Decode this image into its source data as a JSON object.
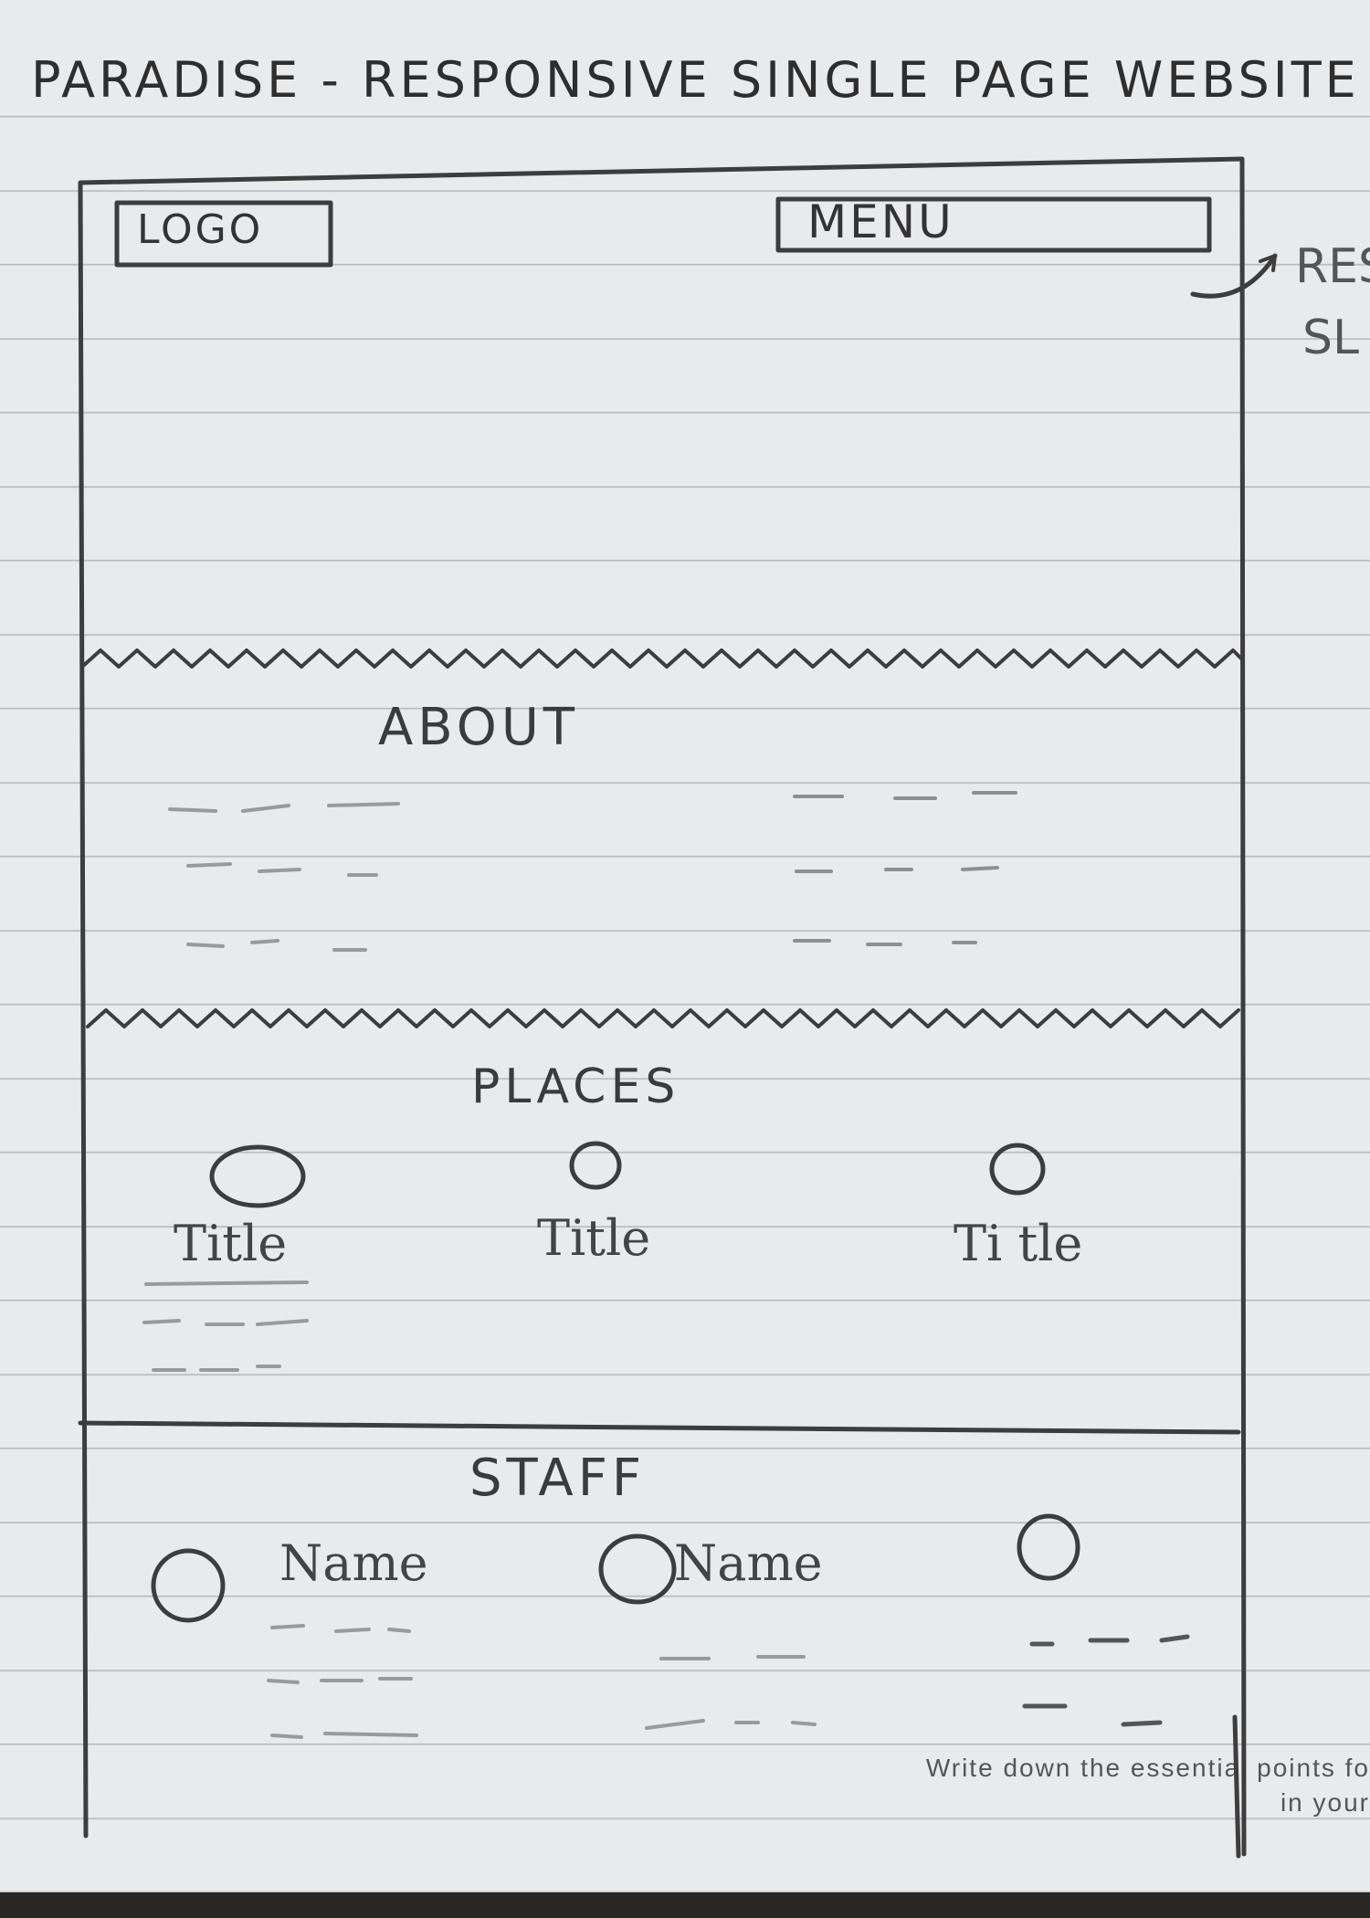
{
  "sheet": {
    "title": "PARADISE - RESPONSIVE SINGLE PAGE WEBSITE",
    "margin_note_line1": "RES",
    "margin_note_line2": "SL",
    "footer_note_line1": "Write down the essential points fo",
    "footer_note_line2": "in your"
  },
  "header": {
    "logo_label": "LOGO",
    "menu_label": "MENU"
  },
  "about": {
    "heading": "ABOUT"
  },
  "places": {
    "heading": "PLACES",
    "items": [
      {
        "title": "Title"
      },
      {
        "title": "Title"
      },
      {
        "title": "Ti tle"
      }
    ]
  },
  "staff": {
    "heading": "STAFF",
    "members": [
      {
        "name": "Name"
      },
      {
        "name": "Name"
      },
      {
        "name": ""
      }
    ]
  },
  "colors": {
    "paper": "#e9eaec",
    "rule_line": "#b9bcc0",
    "pencil": "#3a3a3a"
  }
}
